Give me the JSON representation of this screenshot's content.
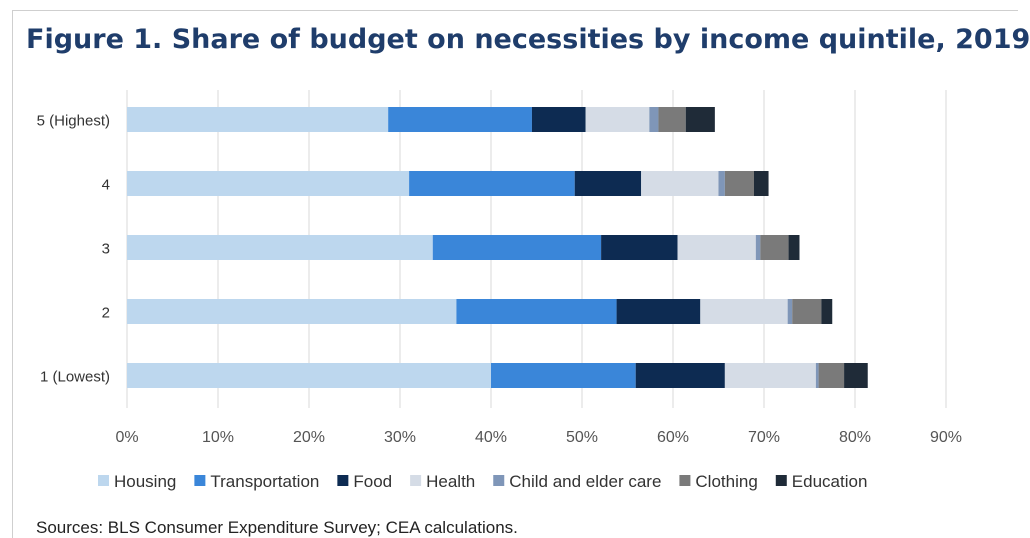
{
  "title": "Figure 1. Share of budget on necessities by income quintile, 2019",
  "source": "Sources: BLS Consumer Expenditure Survey; CEA calculations.",
  "chart_data": {
    "type": "bar",
    "orientation": "horizontal",
    "stacked": true,
    "categories": [
      "5 (Highest)",
      "4",
      "3",
      "2",
      "1 (Lowest)"
    ],
    "xlim": [
      0,
      90
    ],
    "xticks": [
      "0%",
      "10%",
      "20%",
      "30%",
      "40%",
      "50%",
      "60%",
      "70%",
      "80%",
      "90%"
    ],
    "xgrid": true,
    "legend": "bottom",
    "series": [
      {
        "name": "Housing",
        "color": "#bdd7ee",
        "values": [
          28.7,
          31.0,
          33.6,
          36.2,
          40.0
        ]
      },
      {
        "name": "Transportation",
        "color": "#3a86d9",
        "values": [
          15.8,
          18.2,
          18.5,
          17.6,
          15.9
        ]
      },
      {
        "name": "Food",
        "color": "#0d2b52",
        "values": [
          5.9,
          7.3,
          8.4,
          9.2,
          9.8
        ]
      },
      {
        "name": "Health",
        "color": "#d5dce6",
        "values": [
          7.0,
          8.5,
          8.6,
          9.6,
          10.0
        ]
      },
      {
        "name": "Child and elder care",
        "color": "#7f96b8",
        "values": [
          1.0,
          0.7,
          0.5,
          0.5,
          0.3
        ]
      },
      {
        "name": "Clothing",
        "color": "#7a7a7a",
        "values": [
          3.0,
          3.2,
          3.1,
          3.2,
          2.8
        ]
      },
      {
        "name": "Education",
        "color": "#1f2b38",
        "values": [
          3.2,
          1.6,
          1.2,
          1.2,
          2.6
        ]
      }
    ]
  }
}
